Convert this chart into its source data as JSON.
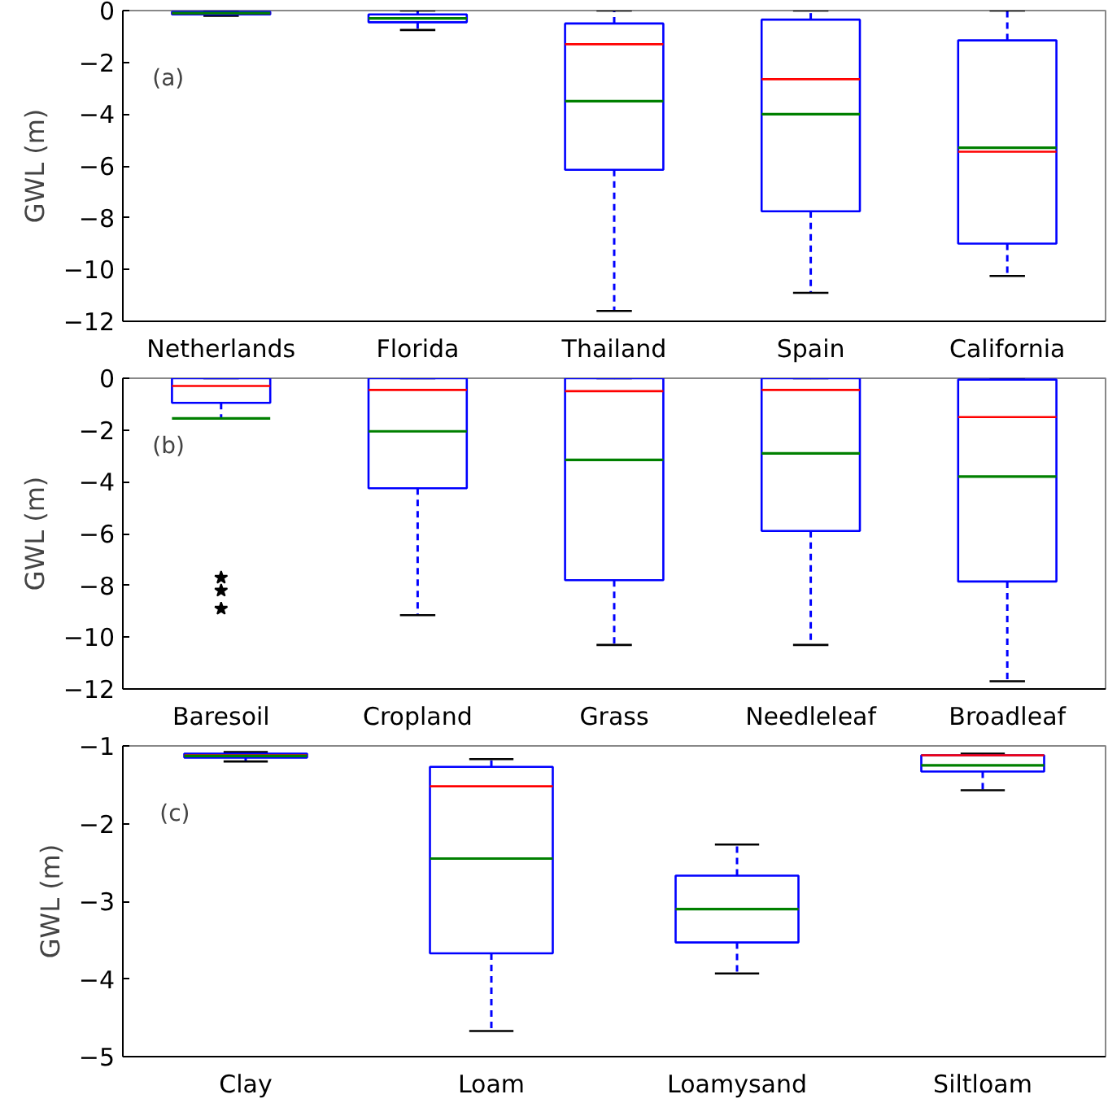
{
  "chart_data": [
    {
      "type": "box",
      "categories": [
        "Netherlands",
        "Florida",
        "Thailand",
        "Spain",
        "California"
      ],
      "ylabel": "GWL (m)",
      "annotations": [
        "(a)"
      ],
      "color": "#0000ff",
      "ylim": [
        -12,
        0
      ],
      "yticks": [
        {
          "value": 0,
          "label": "0"
        },
        {
          "value": -2,
          "label": "−2"
        },
        {
          "value": -4,
          "label": "−4"
        },
        {
          "value": -6,
          "label": "−6"
        },
        {
          "value": -8,
          "label": "−8"
        },
        {
          "value": -10,
          "label": "−10"
        },
        {
          "value": -12,
          "label": "−12"
        }
      ],
      "boxes": [
        {
          "low": -0.2,
          "q1": -0.15,
          "median": -0.1,
          "q3": -0.05,
          "high": 0,
          "mean": -0.1
        },
        {
          "low": -0.75,
          "q1": -0.45,
          "median": -0.3,
          "q3": -0.15,
          "high": 0,
          "mean": -0.3
        },
        {
          "low": -11.6,
          "q1": -6.15,
          "median": -1.3,
          "q3": -0.5,
          "high": 0,
          "mean": -3.5
        },
        {
          "low": -10.9,
          "q1": -7.75,
          "median": -2.65,
          "q3": -0.35,
          "high": 0,
          "mean": -4.0
        },
        {
          "low": -10.25,
          "q1": -9.0,
          "median": -5.45,
          "q3": -1.15,
          "high": 0,
          "mean": -5.3
        }
      ]
    },
    {
      "type": "box",
      "categories": [
        "Baresoil",
        "Cropland",
        "Grass",
        "Needleleaf",
        "Broadleaf"
      ],
      "ylabel": "GWL (m)",
      "annotations": [
        "(b)"
      ],
      "color": "#0000ff",
      "marker": "star",
      "ylim": [
        -12,
        0
      ],
      "yticks": [
        {
          "value": 0,
          "label": "0"
        },
        {
          "value": -2,
          "label": "−2"
        },
        {
          "value": -4,
          "label": "−4"
        },
        {
          "value": -6,
          "label": "−6"
        },
        {
          "value": -8,
          "label": "−8"
        },
        {
          "value": -10,
          "label": "−10"
        },
        {
          "value": -12,
          "label": "−12"
        }
      ],
      "boxes": [
        {
          "low": -1.55,
          "q1": -0.95,
          "median": -0.3,
          "q3": 0,
          "high": 0,
          "mean": -1.55,
          "outliers": [
            -7.7,
            -8.2,
            -8.9
          ]
        },
        {
          "low": -9.15,
          "q1": -4.25,
          "median": -0.45,
          "q3": 0,
          "high": 0,
          "mean": -2.05
        },
        {
          "low": -10.3,
          "q1": -7.8,
          "median": -0.5,
          "q3": 0,
          "high": 0,
          "mean": -3.15
        },
        {
          "low": -10.3,
          "q1": -5.9,
          "median": -0.45,
          "q3": 0,
          "high": 0,
          "mean": -2.9
        },
        {
          "low": -11.7,
          "q1": -7.85,
          "median": -1.5,
          "q3": -0.05,
          "high": 0,
          "mean": -3.8
        }
      ]
    },
    {
      "type": "box",
      "categories": [
        "Clay",
        "Loam",
        "Loamysand",
        "Siltloam"
      ],
      "ylabel": "GWL (m)",
      "annotations": [
        "(c)"
      ],
      "color": "#0000ff",
      "ylim": [
        -5,
        -1
      ],
      "yticks": [
        {
          "value": -1,
          "label": "−1"
        },
        {
          "value": -2,
          "label": "−2"
        },
        {
          "value": -3,
          "label": "−3"
        },
        {
          "value": -4,
          "label": "−4"
        },
        {
          "value": -5,
          "label": "−5"
        }
      ],
      "boxes": [
        {
          "low": -1.2,
          "q1": -1.15,
          "median": -1.12,
          "q3": -1.1,
          "high": -1.08,
          "mean": -1.13
        },
        {
          "low": -4.67,
          "q1": -3.67,
          "median": -1.52,
          "q3": -1.27,
          "high": -1.17,
          "mean": -2.45
        },
        {
          "low": -3.93,
          "q1": -3.53,
          "median": -3.1,
          "q3": -2.67,
          "high": -2.27,
          "mean": -3.1
        },
        {
          "low": -1.57,
          "q1": -1.33,
          "median": -1.12,
          "q3": -1.12,
          "high": -1.1,
          "mean": -1.25
        }
      ]
    }
  ]
}
